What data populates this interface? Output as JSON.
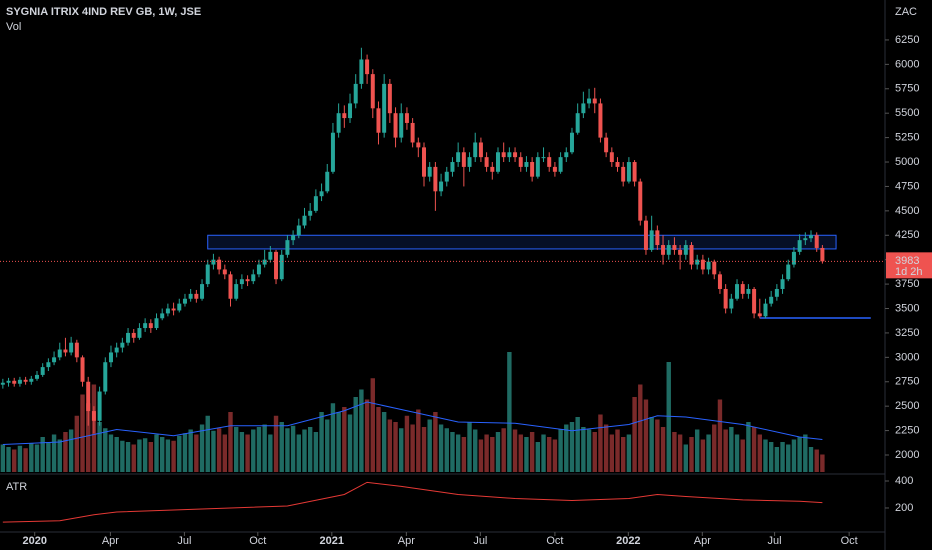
{
  "chart_data": {
    "type": "candlestick",
    "title": "SYGNIA ITRIX 4IND REV GB, 1W, JSE",
    "volume_label": "Vol",
    "currency": "ZAC",
    "atr_label": "ATR",
    "up_color": "#26a69a",
    "down_color": "#ef5350",
    "volume_up_color": "#1f6b63",
    "volume_down_color": "#7a2a2a",
    "ma_color": "#2962ff",
    "atr_color": "#e53935",
    "zone_color": "#2962ff",
    "level_color": "#2962ff",
    "ylim": [
      1826,
      6659
    ],
    "yticks": [
      2000,
      2250,
      2500,
      2750,
      3000,
      3250,
      3500,
      3750,
      4000,
      4250,
      4500,
      4750,
      5000,
      5250,
      5500,
      5750,
      6000,
      6250
    ],
    "xlim": [
      -0.5,
      155
    ],
    "xticks": [
      {
        "value": 5.6,
        "label": "2020"
      },
      {
        "value": 18.9,
        "label": "Apr"
      },
      {
        "value": 31.9,
        "label": "Jul"
      },
      {
        "value": 44.8,
        "label": "Oct"
      },
      {
        "value": 57.8,
        "label": "2021"
      },
      {
        "value": 70.9,
        "label": "Apr"
      },
      {
        "value": 83.9,
        "label": "Jul"
      },
      {
        "value": 97,
        "label": "Oct"
      },
      {
        "value": 109.9,
        "label": "2022"
      },
      {
        "value": 122.9,
        "label": "Apr"
      },
      {
        "value": 135.6,
        "label": "Jul"
      },
      {
        "value": 148.7,
        "label": "Oct"
      }
    ],
    "last_price": 3983,
    "countdown": "1d 2h",
    "zone": {
      "from": 36,
      "to": 146.4,
      "low": 4110,
      "high": 4250
    },
    "level": {
      "from": 133,
      "to": 152.5,
      "value": 3403
    },
    "candles": [
      [
        2720,
        2780,
        2680,
        2740
      ],
      [
        2740,
        2790,
        2700,
        2760
      ],
      [
        2760,
        2790,
        2700,
        2730
      ],
      [
        2730,
        2800,
        2700,
        2770
      ],
      [
        2770,
        2800,
        2720,
        2750
      ],
      [
        2750,
        2810,
        2720,
        2780
      ],
      [
        2780,
        2860,
        2760,
        2820
      ],
      [
        2820,
        2940,
        2800,
        2900
      ],
      [
        2900,
        2990,
        2860,
        2950
      ],
      [
        2950,
        3060,
        2920,
        3000
      ],
      [
        3000,
        3150,
        2970,
        3080
      ],
      [
        3080,
        3200,
        3010,
        3050
      ],
      [
        3050,
        3210,
        3020,
        3150
      ],
      [
        3150,
        3180,
        2950,
        3000
      ],
      [
        3000,
        3020,
        2700,
        2750
      ],
      [
        2750,
        2800,
        2300,
        2450
      ],
      [
        2450,
        2500,
        2220,
        2350
      ],
      [
        2350,
        2700,
        2300,
        2650
      ],
      [
        2650,
        3000,
        2620,
        2950
      ],
      [
        2950,
        3120,
        2900,
        3050
      ],
      [
        3050,
        3150,
        3000,
        3100
      ],
      [
        3100,
        3200,
        3050,
        3150
      ],
      [
        3150,
        3300,
        3120,
        3250
      ],
      [
        3250,
        3290,
        3150,
        3200
      ],
      [
        3200,
        3350,
        3180,
        3300
      ],
      [
        3300,
        3400,
        3260,
        3350
      ],
      [
        3350,
        3390,
        3250,
        3300
      ],
      [
        3300,
        3450,
        3280,
        3400
      ],
      [
        3400,
        3500,
        3380,
        3450
      ],
      [
        3450,
        3550,
        3420,
        3500
      ],
      [
        3500,
        3560,
        3430,
        3480
      ],
      [
        3480,
        3600,
        3460,
        3550
      ],
      [
        3550,
        3650,
        3520,
        3600
      ],
      [
        3600,
        3700,
        3570,
        3650
      ],
      [
        3650,
        3690,
        3560,
        3600
      ],
      [
        3600,
        3800,
        3580,
        3750
      ],
      [
        3750,
        4000,
        3720,
        3950
      ],
      [
        3950,
        4060,
        3900,
        4000
      ],
      [
        4000,
        4030,
        3850,
        3900
      ],
      [
        3900,
        3950,
        3800,
        3850
      ],
      [
        3850,
        3880,
        3520,
        3600
      ],
      [
        3600,
        3800,
        3580,
        3750
      ],
      [
        3750,
        3850,
        3700,
        3800
      ],
      [
        3800,
        3840,
        3730,
        3780
      ],
      [
        3780,
        3900,
        3750,
        3850
      ],
      [
        3850,
        4000,
        3820,
        3950
      ],
      [
        3950,
        4100,
        3920,
        4000
      ],
      [
        4000,
        4140,
        3970,
        4080
      ],
      [
        4080,
        4100,
        3750,
        3800
      ],
      [
        3800,
        4100,
        3780,
        4050
      ],
      [
        4050,
        4250,
        4020,
        4200
      ],
      [
        4200,
        4300,
        4150,
        4250
      ],
      [
        4250,
        4420,
        4220,
        4350
      ],
      [
        4350,
        4530,
        4320,
        4450
      ],
      [
        4450,
        4580,
        4400,
        4500
      ],
      [
        4500,
        4720,
        4480,
        4650
      ],
      [
        4650,
        4780,
        4600,
        4700
      ],
      [
        4700,
        4980,
        4680,
        4900
      ],
      [
        4900,
        5400,
        4880,
        5300
      ],
      [
        5300,
        5600,
        5250,
        5500
      ],
      [
        5500,
        5580,
        5350,
        5450
      ],
      [
        5450,
        5700,
        5400,
        5600
      ],
      [
        5600,
        5900,
        5550,
        5800
      ],
      [
        5800,
        6170,
        5750,
        6050
      ],
      [
        6050,
        6100,
        5800,
        5900
      ],
      [
        5900,
        5950,
        5450,
        5550
      ],
      [
        5550,
        5620,
        5180,
        5300
      ],
      [
        5300,
        5900,
        5250,
        5800
      ],
      [
        5800,
        5850,
        5400,
        5500
      ],
      [
        5500,
        5560,
        5150,
        5250
      ],
      [
        5250,
        5600,
        5200,
        5500
      ],
      [
        5500,
        5560,
        5330,
        5400
      ],
      [
        5400,
        5450,
        5150,
        5200
      ],
      [
        5200,
        5250,
        5050,
        5150
      ],
      [
        5150,
        5200,
        4750,
        4850
      ],
      [
        4850,
        5000,
        4800,
        4950
      ],
      [
        4950,
        5000,
        4500,
        4700
      ],
      [
        4700,
        4880,
        4650,
        4800
      ],
      [
        4800,
        4950,
        4750,
        4900
      ],
      [
        4900,
        5050,
        4850,
        5000
      ],
      [
        5000,
        5200,
        4950,
        5100
      ],
      [
        5100,
        5150,
        4750,
        4950
      ],
      [
        4950,
        5100,
        4900,
        5050
      ],
      [
        5050,
        5300,
        5000,
        5200
      ],
      [
        5200,
        5250,
        5000,
        5050
      ],
      [
        5050,
        5100,
        4900,
        4950
      ],
      [
        4950,
        5000,
        4820,
        4900
      ],
      [
        4900,
        5150,
        4880,
        5100
      ],
      [
        5100,
        5200,
        5000,
        5050
      ],
      [
        5050,
        5150,
        5000,
        5100
      ],
      [
        5100,
        5150,
        5000,
        5050
      ],
      [
        5050,
        5100,
        4900,
        4950
      ],
      [
        4950,
        5060,
        4900,
        5000
      ],
      [
        5000,
        5050,
        4800,
        4850
      ],
      [
        4850,
        5100,
        4830,
        5050
      ],
      [
        5050,
        5150,
        5000,
        5050
      ],
      [
        5050,
        5100,
        4900,
        4950
      ],
      [
        4950,
        5000,
        4850,
        4900
      ],
      [
        4900,
        5100,
        4880,
        5050
      ],
      [
        5050,
        5150,
        5000,
        5100
      ],
      [
        5100,
        5350,
        5080,
        5300
      ],
      [
        5300,
        5600,
        5280,
        5500
      ],
      [
        5500,
        5720,
        5450,
        5600
      ],
      [
        5600,
        5750,
        5550,
        5650
      ],
      [
        5650,
        5760,
        5500,
        5600
      ],
      [
        5600,
        5650,
        5200,
        5250
      ],
      [
        5250,
        5300,
        5050,
        5100
      ],
      [
        5100,
        5150,
        4950,
        5000
      ],
      [
        5000,
        5050,
        4900,
        4950
      ],
      [
        4950,
        5000,
        4750,
        4800
      ],
      [
        4800,
        5050,
        4780,
        5000
      ],
      [
        5000,
        5020,
        4750,
        4800
      ],
      [
        4800,
        4830,
        4350,
        4400
      ],
      [
        4400,
        4450,
        4050,
        4100
      ],
      [
        4100,
        4450,
        4080,
        4300
      ],
      [
        4300,
        4350,
        4100,
        4150
      ],
      [
        4150,
        4250,
        3950,
        4050
      ],
      [
        4050,
        4200,
        4000,
        4150
      ],
      [
        4150,
        4230,
        4050,
        4100
      ],
      [
        4100,
        4150,
        3900,
        4050
      ],
      [
        4050,
        4200,
        4000,
        4150
      ],
      [
        4150,
        4180,
        3900,
        3950
      ],
      [
        3950,
        4050,
        3900,
        4000
      ],
      [
        4000,
        4050,
        3850,
        3900
      ],
      [
        3900,
        4020,
        3850,
        3980
      ],
      [
        3980,
        4000,
        3800,
        3850
      ],
      [
        3850,
        3880,
        3650,
        3700
      ],
      [
        3700,
        3750,
        3450,
        3500
      ],
      [
        3500,
        3650,
        3450,
        3600
      ],
      [
        3600,
        3800,
        3580,
        3750
      ],
      [
        3750,
        3780,
        3600,
        3650
      ],
      [
        3650,
        3750,
        3600,
        3700
      ],
      [
        3700,
        3720,
        3400,
        3450
      ],
      [
        3450,
        3600,
        3400,
        3420
      ],
      [
        3420,
        3600,
        3400,
        3550
      ],
      [
        3550,
        3680,
        3520,
        3620
      ],
      [
        3620,
        3750,
        3580,
        3700
      ],
      [
        3700,
        3850,
        3650,
        3800
      ],
      [
        3800,
        4000,
        3780,
        3950
      ],
      [
        3950,
        4130,
        3920,
        4080
      ],
      [
        4080,
        4260,
        4050,
        4200
      ],
      [
        4200,
        4280,
        4150,
        4220
      ],
      [
        4220,
        4300,
        4180,
        4250
      ],
      [
        4250,
        4280,
        4080,
        4120
      ],
      [
        4120,
        4150,
        3960,
        3983
      ]
    ],
    "volumes": [
      22,
      20,
      18,
      21,
      19,
      23,
      22,
      28,
      24,
      30,
      26,
      32,
      34,
      45,
      62,
      55,
      70,
      40,
      35,
      30,
      28,
      25,
      24,
      22,
      26,
      27,
      24,
      30,
      28,
      26,
      25,
      29,
      31,
      34,
      30,
      38,
      45,
      33,
      35,
      30,
      48,
      36,
      32,
      30,
      34,
      36,
      38,
      30,
      45,
      40,
      35,
      37,
      30,
      34,
      36,
      32,
      48,
      42,
      55,
      48,
      52,
      46,
      60,
      66,
      58,
      75,
      52,
      48,
      42,
      40,
      35,
      45,
      38,
      50,
      36,
      42,
      48,
      38,
      35,
      32,
      30,
      28,
      40,
      34,
      26,
      30,
      28,
      32,
      35,
      96,
      34,
      30,
      28,
      32,
      24,
      30,
      28,
      26,
      34,
      38,
      40,
      44,
      36,
      34,
      32,
      46,
      38,
      30,
      34,
      28,
      30,
      60,
      70,
      58,
      44,
      42,
      36,
      88,
      32,
      30,
      22,
      28,
      34,
      26,
      30,
      38,
      58,
      34,
      36,
      30,
      26,
      40,
      36,
      30,
      26,
      24,
      20,
      24,
      22,
      26,
      28,
      30,
      20,
      18,
      14
    ],
    "volume_ma": {
      "x": [
        0,
        10,
        20,
        30,
        40,
        50,
        60,
        64,
        70,
        80,
        90,
        100,
        110,
        115,
        120,
        130,
        140,
        144
      ],
      "values": [
        22,
        24,
        34,
        29,
        37,
        37,
        49,
        56,
        50,
        40,
        39,
        33,
        38,
        45,
        44,
        38,
        28,
        26
      ]
    },
    "atr": {
      "x": [
        0,
        10,
        16,
        20,
        30,
        40,
        50,
        60,
        64,
        70,
        80,
        90,
        100,
        110,
        115,
        120,
        130,
        140,
        144
      ],
      "values": [
        95,
        105,
        150,
        170,
        185,
        200,
        215,
        300,
        390,
        360,
        300,
        270,
        255,
        270,
        300,
        285,
        260,
        250,
        240
      ]
    },
    "atr_ylim": [
      22,
      437
    ],
    "atr_yticks": [
      200,
      400
    ]
  }
}
